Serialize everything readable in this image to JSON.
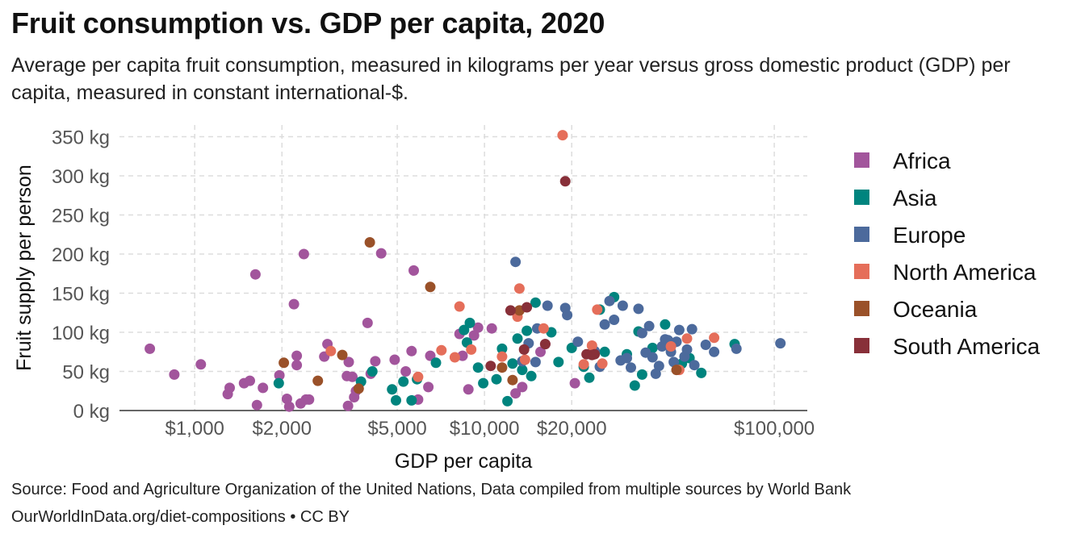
{
  "title": "Fruit consumption vs. GDP per capita, 2020",
  "subtitle": "Average per capita fruit consumption, measured in kilograms per year versus gross domestic product (GDP) per capita, measured in constant international-$.",
  "source": "Source: Food and Agriculture Organization of the United Nations, Data compiled from multiple sources by World Bank",
  "url": "OurWorldInData.org/diet-compositions • CC BY",
  "colors": {
    "Africa": "#A2559C",
    "Asia": "#00847E",
    "Europe": "#4C6A9C",
    "North America": "#E56E5A",
    "Oceania": "#9A5129",
    "South America": "#883039"
  },
  "chart_data": {
    "type": "scatter",
    "xlabel": "GDP per capita",
    "ylabel": "Fruit supply per person",
    "xscale": "log",
    "xlim": [
      550,
      130000
    ],
    "ylim": [
      0,
      365
    ],
    "x_ticks": [
      1000,
      2000,
      5000,
      10000,
      20000,
      100000
    ],
    "x_tick_labels": [
      "$1,000",
      "$2,000",
      "$5,000",
      "$10,000",
      "$20,000",
      "$100,000"
    ],
    "y_ticks": [
      0,
      50,
      100,
      150,
      200,
      250,
      300,
      350
    ],
    "y_tick_labels": [
      "0 kg",
      "50 kg",
      "100 kg",
      "150 kg",
      "200 kg",
      "250 kg",
      "300 kg",
      "350 kg"
    ],
    "grid": true,
    "legend_position": "right",
    "series": [
      {
        "name": "Africa",
        "points": [
          [
            700,
            79
          ],
          [
            850,
            46
          ],
          [
            1050,
            59
          ],
          [
            1300,
            21
          ],
          [
            1320,
            29
          ],
          [
            1480,
            35
          ],
          [
            1550,
            38
          ],
          [
            1620,
            174
          ],
          [
            1640,
            7
          ],
          [
            1720,
            29
          ],
          [
            1960,
            45
          ],
          [
            2080,
            15
          ],
          [
            2120,
            5
          ],
          [
            2200,
            136
          ],
          [
            2250,
            58
          ],
          [
            2250,
            70
          ],
          [
            2320,
            9
          ],
          [
            2380,
            200
          ],
          [
            2420,
            14
          ],
          [
            2480,
            14
          ],
          [
            2800,
            69
          ],
          [
            2870,
            85
          ],
          [
            3350,
            44
          ],
          [
            3400,
            62
          ],
          [
            3500,
            43
          ],
          [
            3550,
            17
          ],
          [
            3600,
            25
          ],
          [
            3380,
            6
          ],
          [
            3950,
            112
          ],
          [
            4050,
            47
          ],
          [
            4200,
            63
          ],
          [
            4400,
            201
          ],
          [
            4900,
            65
          ],
          [
            5350,
            50
          ],
          [
            5600,
            76
          ],
          [
            5700,
            179
          ],
          [
            5900,
            14
          ],
          [
            6400,
            30
          ],
          [
            6500,
            70
          ],
          [
            8400,
            70
          ],
          [
            8800,
            27
          ],
          [
            9500,
            106
          ],
          [
            9200,
            96
          ],
          [
            8200,
            98
          ],
          [
            10600,
            105
          ],
          [
            12800,
            22
          ],
          [
            13500,
            30
          ],
          [
            15600,
            75
          ],
          [
            16200,
            85
          ],
          [
            20500,
            35
          ]
        ]
      },
      {
        "name": "Asia",
        "points": [
          [
            1950,
            35
          ],
          [
            3750,
            37
          ],
          [
            4100,
            50
          ],
          [
            4800,
            27
          ],
          [
            4950,
            13
          ],
          [
            5250,
            37
          ],
          [
            5600,
            13
          ],
          [
            5850,
            40
          ],
          [
            6800,
            61
          ],
          [
            8500,
            103
          ],
          [
            8700,
            87
          ],
          [
            8900,
            112
          ],
          [
            9500,
            55
          ],
          [
            9900,
            35
          ],
          [
            11000,
            40
          ],
          [
            11500,
            79
          ],
          [
            12000,
            12
          ],
          [
            12500,
            60
          ],
          [
            13000,
            92
          ],
          [
            13500,
            52
          ],
          [
            14000,
            102
          ],
          [
            14500,
            44
          ],
          [
            15000,
            138
          ],
          [
            17000,
            100
          ],
          [
            18000,
            62
          ],
          [
            20000,
            80
          ],
          [
            22000,
            56
          ],
          [
            23000,
            42
          ],
          [
            25000,
            129
          ],
          [
            26000,
            75
          ],
          [
            28000,
            145
          ],
          [
            31000,
            72
          ],
          [
            34000,
            101
          ],
          [
            33000,
            32
          ],
          [
            35000,
            46
          ],
          [
            38000,
            80
          ],
          [
            42000,
            110
          ],
          [
            48000,
            60
          ],
          [
            51000,
            67
          ],
          [
            56000,
            48
          ],
          [
            73000,
            85
          ]
        ]
      },
      {
        "name": "Europe",
        "points": [
          [
            12800,
            190
          ],
          [
            13500,
            63
          ],
          [
            14200,
            86
          ],
          [
            15200,
            105
          ],
          [
            15000,
            62
          ],
          [
            16500,
            134
          ],
          [
            19000,
            131
          ],
          [
            19300,
            122
          ],
          [
            21000,
            88
          ],
          [
            24000,
            76
          ],
          [
            25000,
            56
          ],
          [
            26000,
            110
          ],
          [
            27000,
            140
          ],
          [
            28000,
            116
          ],
          [
            29500,
            64
          ],
          [
            30000,
            134
          ],
          [
            31000,
            67
          ],
          [
            32000,
            55
          ],
          [
            34000,
            130
          ],
          [
            35000,
            99
          ],
          [
            36000,
            74
          ],
          [
            37000,
            108
          ],
          [
            38000,
            68
          ],
          [
            39000,
            47
          ],
          [
            40000,
            57
          ],
          [
            41000,
            82
          ],
          [
            42000,
            91
          ],
          [
            43000,
            90
          ],
          [
            44000,
            75
          ],
          [
            45000,
            62
          ],
          [
            46000,
            88
          ],
          [
            47000,
            103
          ],
          [
            49000,
            69
          ],
          [
            50000,
            78
          ],
          [
            52000,
            104
          ],
          [
            53000,
            58
          ],
          [
            58000,
            84
          ],
          [
            62000,
            75
          ],
          [
            74000,
            79
          ],
          [
            105000,
            86
          ]
        ]
      },
      {
        "name": "North America",
        "points": [
          [
            2950,
            76
          ],
          [
            5900,
            43
          ],
          [
            7100,
            77
          ],
          [
            7900,
            68
          ],
          [
            8200,
            133
          ],
          [
            9000,
            78
          ],
          [
            11500,
            69
          ],
          [
            13000,
            120
          ],
          [
            13200,
            156
          ],
          [
            13800,
            65
          ],
          [
            16000,
            105
          ],
          [
            18600,
            352
          ],
          [
            22000,
            59
          ],
          [
            23500,
            83
          ],
          [
            24500,
            129
          ],
          [
            25500,
            60
          ],
          [
            44000,
            82
          ],
          [
            47000,
            52
          ],
          [
            50000,
            92
          ],
          [
            62000,
            93
          ]
        ]
      },
      {
        "name": "Oceania",
        "points": [
          [
            2030,
            61
          ],
          [
            2660,
            38
          ],
          [
            3230,
            71
          ],
          [
            3680,
            28
          ],
          [
            4020,
            215
          ],
          [
            6500,
            158
          ],
          [
            11500,
            55
          ],
          [
            12500,
            39
          ],
          [
            13200,
            128
          ],
          [
            46000,
            52
          ]
        ]
      },
      {
        "name": "South America",
        "points": [
          [
            10500,
            57
          ],
          [
            12300,
            128
          ],
          [
            13700,
            78
          ],
          [
            14000,
            132
          ],
          [
            16200,
            85
          ],
          [
            19000,
            293
          ],
          [
            22500,
            72
          ],
          [
            23500,
            71
          ],
          [
            24000,
            72
          ]
        ]
      }
    ]
  }
}
